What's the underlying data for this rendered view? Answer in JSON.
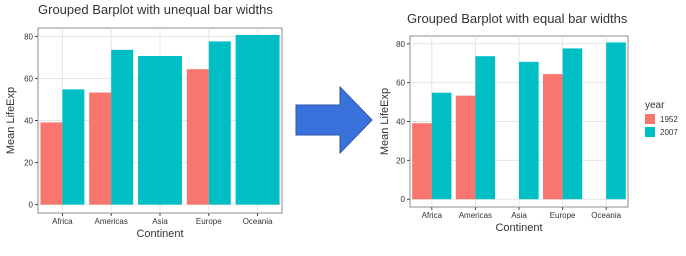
{
  "charts": [
    {
      "chart_data": {
        "type": "bar",
        "title": "Grouped Barplot with unequal bar widths",
        "x_label": "Continent",
        "y_label": "Mean LifeExp",
        "categories": [
          "Africa",
          "Americas",
          "Asia",
          "Europe",
          "Oceania"
        ],
        "series": [
          {
            "color": "#F8766D",
            "values": [
              39.1,
              53.3,
              null,
              64.4,
              null
            ]
          },
          {
            "color": "#00BFC4",
            "values": [
              54.8,
              73.6,
              70.7,
              77.6,
              80.7
            ]
          }
        ],
        "dodge_preserve": "total",
        "ylim": [
          -4,
          84
        ],
        "yticks": [
          0,
          20,
          40,
          60,
          80
        ],
        "grid": true
      }
    },
    {
      "chart_data": {
        "type": "bar",
        "title": "Grouped Barplot with equal bar widths",
        "x_label": "Continent",
        "y_label": "Mean LifeExp",
        "categories": [
          "Africa",
          "Americas",
          "Asia",
          "Europe",
          "Oceania"
        ],
        "series": [
          {
            "name": "1952",
            "color": "#F8766D",
            "values": [
              39.1,
              53.3,
              null,
              64.4,
              null
            ]
          },
          {
            "name": "2007",
            "color": "#00BFC4",
            "values": [
              54.8,
              73.6,
              70.7,
              77.6,
              80.7
            ]
          }
        ],
        "dodge_preserve": "single",
        "legend": "right",
        "legend_title": "year",
        "ylim": [
          -4,
          84
        ],
        "yticks": [
          0,
          20,
          40,
          60,
          80
        ],
        "grid": true
      }
    }
  ]
}
